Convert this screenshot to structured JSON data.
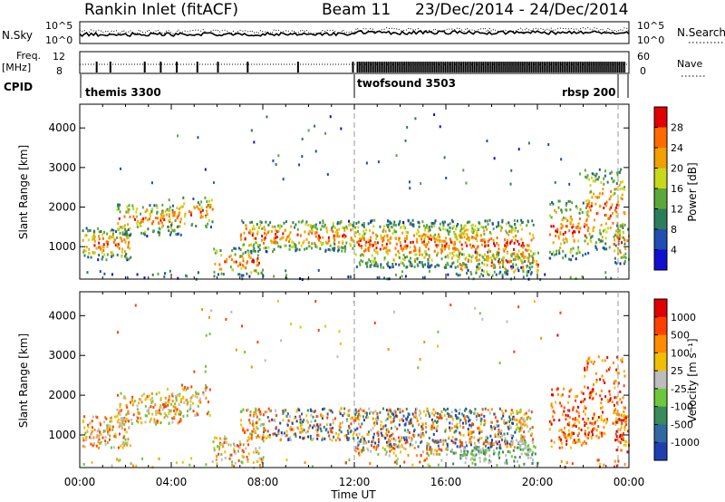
{
  "header": {
    "title": "Rankin Inlet (fitACF)",
    "beam": "Beam 11",
    "dates": "23/Dec/2014 - 24/Dec/2014"
  },
  "top_panels": {
    "nsky_label": "N.Sky",
    "nsky_ticks": [
      "10^5",
      "10^0"
    ],
    "nsearch_label": "N.Search",
    "nsearch_ticks": [
      "10^5",
      "10^0"
    ],
    "freq_label": "Freq.",
    "freq_unit": "[MHz]",
    "freq_ticks": [
      "12",
      "8"
    ],
    "nave_label": "Nave",
    "nave_ticks": [
      "60",
      "0"
    ],
    "cpid_label": "CPID",
    "cpid_segments": [
      {
        "name": "themis 3300",
        "start_h": 0,
        "end_h": 12.0
      },
      {
        "name": "twofsound 3503",
        "start_h": 12.0,
        "end_h": 24.0
      },
      {
        "name": "rbsp 200",
        "start_h": 22.0,
        "end_h": 24.0
      }
    ]
  },
  "colors": {
    "power_scale": [
      "#1010d0",
      "#1f4fb0",
      "#2e7d5a",
      "#5aa83a",
      "#c8d81a",
      "#f0a000",
      "#ff6a00",
      "#e00000"
    ],
    "velocity_scale": [
      "#1f3fb0",
      "#2e6aa0",
      "#3a8a5a",
      "#6cc83a",
      "#bdbdbd",
      "#f0c000",
      "#ff8c00",
      "#ff4000",
      "#e00000"
    ]
  },
  "chart_data": [
    {
      "type": "heatmap",
      "title": "",
      "xlabel": "",
      "ylabel": "Slant Range [km]",
      "x_ticks": [
        "00:00",
        "04:00",
        "08:00",
        "12:00",
        "16:00",
        "20:00",
        "00:00"
      ],
      "y_ticks": [
        "1000",
        "2000",
        "3000",
        "4000"
      ],
      "xlim_hours": [
        0,
        24
      ],
      "ylim_km": [
        180,
        4600
      ],
      "colorbar": {
        "label": "Power [dB]",
        "ticks": [
          "28",
          "24",
          "20",
          "16",
          "12",
          "8",
          "4"
        ]
      }
    },
    {
      "type": "heatmap",
      "title": "",
      "xlabel": "Time UT",
      "ylabel": "Slant Range [km]",
      "x_ticks": [
        "00:00",
        "04:00",
        "08:00",
        "12:00",
        "16:00",
        "20:00",
        "00:00"
      ],
      "y_ticks": [
        "1000",
        "2000",
        "3000",
        "4000"
      ],
      "xlim_hours": [
        0,
        24
      ],
      "ylim_km": [
        180,
        4600
      ],
      "colorbar": {
        "label": "Velocity [m s⁻¹]",
        "ticks": [
          "1000",
          "500",
          "100",
          "25",
          "-25",
          "-100",
          "-500",
          "-1000"
        ]
      }
    }
  ]
}
